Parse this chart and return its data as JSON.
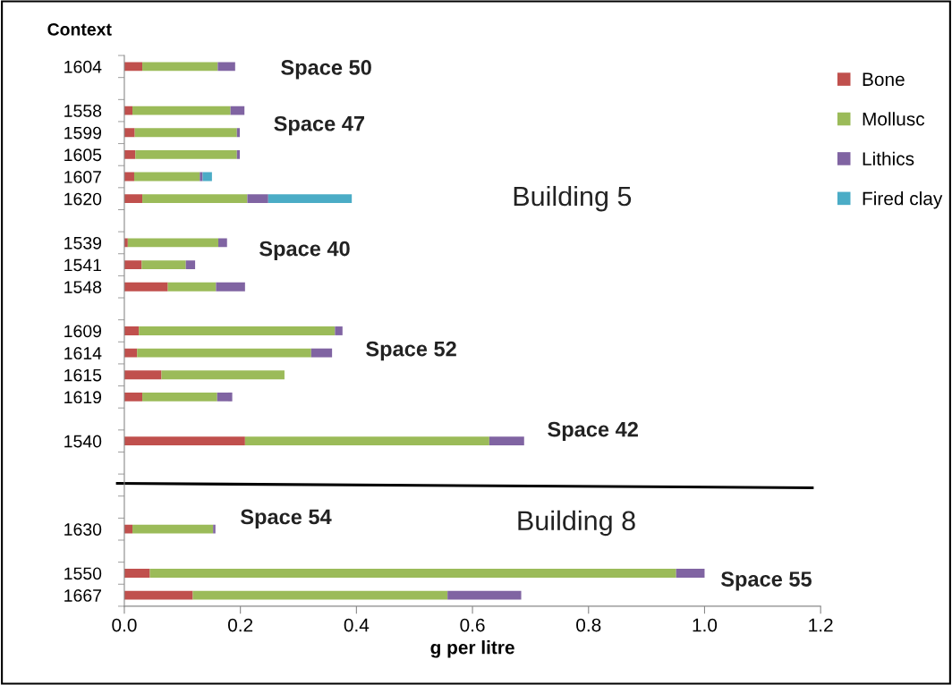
{
  "chart_data": {
    "type": "bar",
    "orientation": "horizontal",
    "stacked": true,
    "xlabel": "g per litre",
    "ylabel": "Context",
    "categories": [
      "1604",
      null,
      "1558",
      "1599",
      "1605",
      "1607",
      "1620",
      null,
      "1539",
      "1541",
      "1548",
      null,
      "1609",
      "1614",
      "1615",
      "1619",
      null,
      "1540",
      null,
      null,
      null,
      "1630",
      null,
      "1550",
      "1667"
    ],
    "series": [
      {
        "name": "Bone",
        "color": "#c0504d",
        "values": [
          0.031,
          null,
          0.014,
          0.018,
          0.019,
          0.017,
          0.031,
          null,
          0.006,
          0.03,
          0.075,
          null,
          0.025,
          0.022,
          0.064,
          0.031,
          null,
          0.208,
          null,
          null,
          null,
          0.014,
          null,
          0.044,
          0.118
        ]
      },
      {
        "name": "Mollusc",
        "color": "#9bbb59",
        "values": [
          0.13,
          null,
          0.169,
          0.176,
          0.175,
          0.113,
          0.181,
          null,
          0.156,
          0.076,
          0.083,
          null,
          0.338,
          0.3,
          0.212,
          0.129,
          null,
          0.421,
          null,
          null,
          null,
          0.139,
          null,
          0.907,
          0.439
        ]
      },
      {
        "name": "Lithics",
        "color": "#8064a2",
        "values": [
          0.03,
          null,
          0.024,
          0.005,
          0.005,
          0.005,
          0.036,
          null,
          0.015,
          0.016,
          0.05,
          null,
          0.013,
          0.036,
          0,
          0.026,
          null,
          0.06,
          null,
          null,
          null,
          0.004,
          null,
          0.049,
          0.127
        ]
      },
      {
        "name": "Fired clay",
        "color": "#4bacc6",
        "values": [
          null,
          null,
          null,
          null,
          null,
          0.016,
          0.144,
          null,
          null,
          null,
          null,
          null,
          null,
          null,
          null,
          null,
          null,
          null,
          null,
          null,
          null,
          null,
          null,
          null,
          null
        ]
      }
    ],
    "xlim": [
      0,
      1.2
    ],
    "xticks": [
      {
        "value": 0,
        "label": "0.0"
      },
      0.2,
      0.4,
      0.6,
      0.8,
      {
        "value": 1.0,
        "label": "1.0"
      },
      1.2
    ],
    "grid": false,
    "legend": "top right",
    "annotations": [
      "Space 50",
      "Space 47",
      "Building 5",
      "Space 40",
      "Space 52",
      "Space 42",
      "Building 8",
      "Space 54",
      "Space 55"
    ]
  }
}
